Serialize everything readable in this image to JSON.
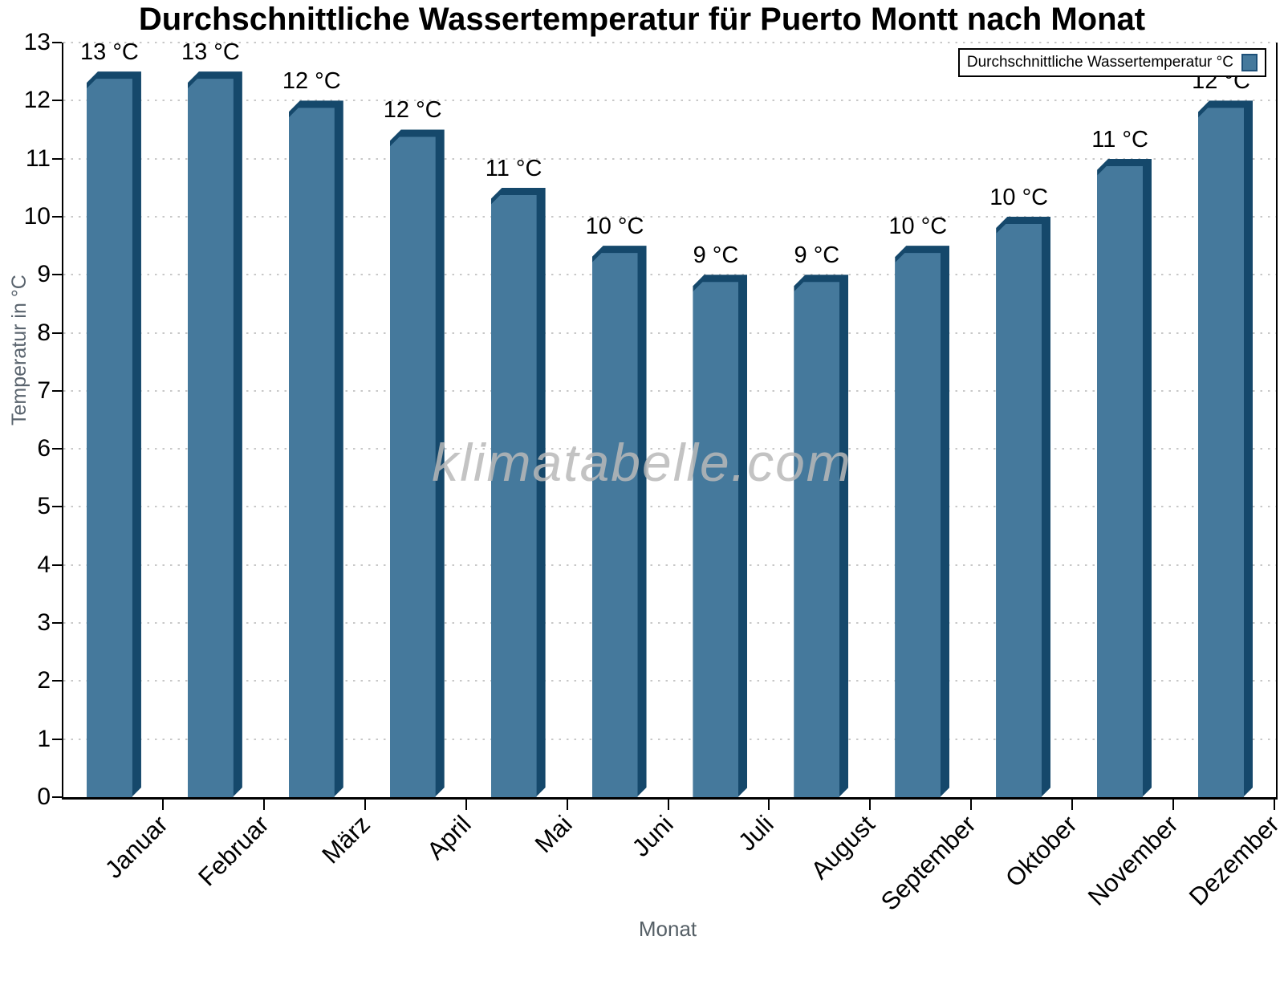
{
  "chart_data": {
    "type": "bar",
    "title": "Durchschnittliche Wassertemperatur für Puerto Montt nach Monat",
    "xlabel": "Monat",
    "ylabel": "Temperatur in °C",
    "categories": [
      "Januar",
      "Februar",
      "März",
      "April",
      "Mai",
      "Juni",
      "Juli",
      "August",
      "September",
      "Oktober",
      "November",
      "Dezember"
    ],
    "values": [
      12.5,
      12.5,
      12,
      11.5,
      10.5,
      9.5,
      9,
      9,
      9.5,
      10,
      11,
      12
    ],
    "bar_labels": [
      "13 °C",
      "13 °C",
      "12 °C",
      "12 °C",
      "11 °C",
      "10 °C",
      "9 °C",
      "9 °C",
      "10 °C",
      "10 °C",
      "11 °C",
      "12 °C"
    ],
    "ylim": [
      0,
      13
    ],
    "yticks": [
      0,
      1,
      2,
      3,
      4,
      5,
      6,
      7,
      8,
      9,
      10,
      11,
      12,
      13
    ],
    "grid": "horizontal-dotted",
    "legend": {
      "label": "Durchschnittliche Wassertemperatur °C",
      "position": "top-right"
    },
    "watermark": "klimatabelle.com",
    "colors": {
      "bar_face": "#45799c",
      "bar_edge": "#15486b",
      "grid": "#c8c8c8",
      "axis": "#000000",
      "axis_title_gray": "#5a646e",
      "watermark": "#b9b9b9"
    }
  }
}
